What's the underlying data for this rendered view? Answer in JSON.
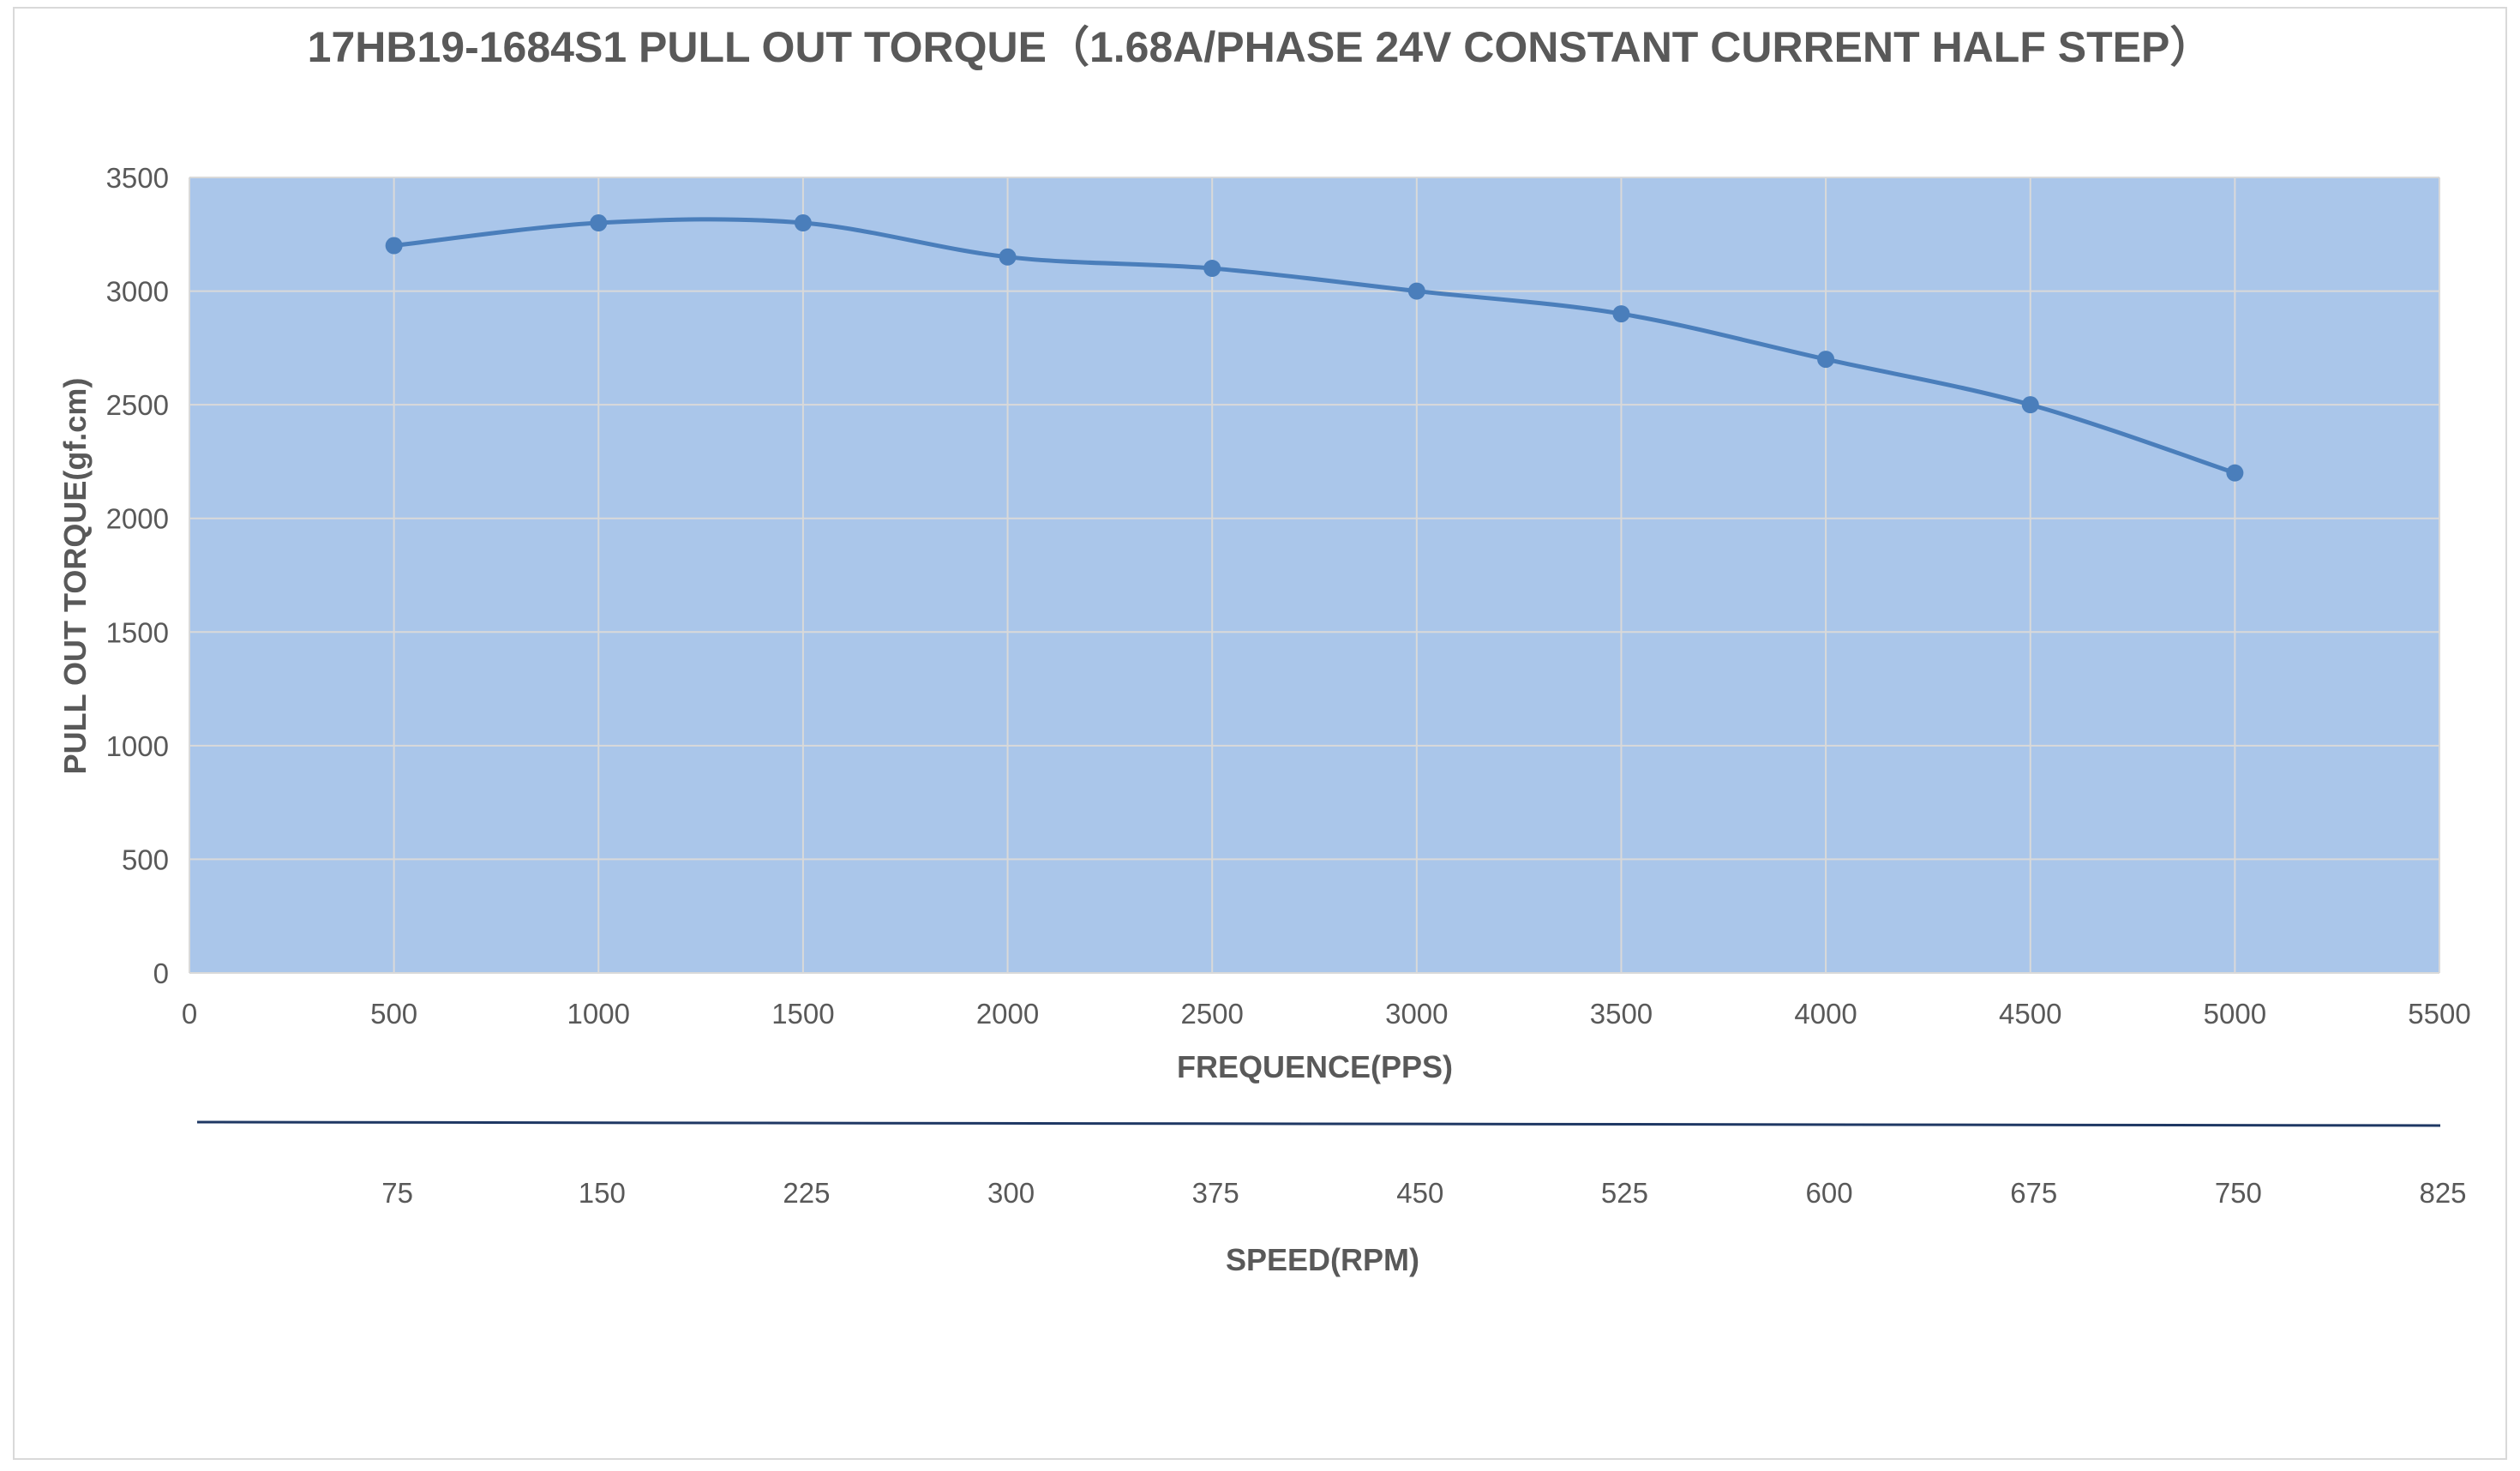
{
  "chart_data": {
    "type": "line",
    "title": "17HB19-1684S1 PULL OUT TORQUE（1.68A/PHASE 24V CONSTANT CURRENT    HALF STEP）",
    "xlabel": "FREQUENCE(PPS)",
    "ylabel": "PULL OUT TORQUE(gf.cm)",
    "xlim": [
      0,
      5500
    ],
    "ylim": [
      0,
      3500
    ],
    "x_ticks": [
      "0",
      "500",
      "1000",
      "1500",
      "2000",
      "2500",
      "3000",
      "3500",
      "4000",
      "4500",
      "5000",
      "5500"
    ],
    "y_ticks": [
      "0",
      "500",
      "1000",
      "1500",
      "2000",
      "2500",
      "3000",
      "3500"
    ],
    "grid": true,
    "smooth": true,
    "series": [
      {
        "x": [
          500,
          1000,
          1500,
          2000,
          2500,
          3000,
          3500,
          4000,
          4500,
          5000
        ],
        "y": [
          3200,
          3300,
          3300,
          3150,
          3100,
          3000,
          2900,
          2700,
          2500,
          2200
        ]
      }
    ],
    "secondary_axis": {
      "label": "SPEED(RPM)",
      "ticks": [
        "75",
        "150",
        "225",
        "300",
        "375",
        "450",
        "525",
        "600",
        "675",
        "750",
        "825"
      ],
      "tick_x": [
        500,
        1000,
        1500,
        2000,
        2500,
        3000,
        3500,
        4000,
        4500,
        5000,
        5500
      ]
    }
  },
  "colors": {
    "plot_background": "#aac6ea",
    "gridline": "#d9d9d9",
    "series_line": "#4a7ebb",
    "marker": "#4a7ebb",
    "secondary_axis_line": "#1f3864",
    "text": "#595959"
  }
}
